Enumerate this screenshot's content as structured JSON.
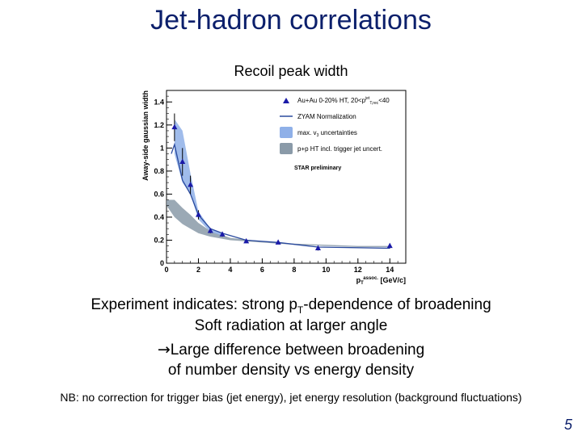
{
  "slide": {
    "title": "Jet-hadron correlations",
    "subtitle": "Recoil peak width",
    "text_lines": [
      {
        "pre": "Experiment indicates: strong p",
        "sub": "T",
        "post": "-dependence of broadening"
      },
      {
        "pre": "Soft radiation at larger angle"
      },
      {
        "arrow": "→",
        "pre": "Large difference between broadening"
      },
      {
        "pre": "of number density vs energy density"
      }
    ],
    "nb": "NB: no correction for trigger bias (jet energy), jet energy resolution (background fluctuations)",
    "page_number": "5"
  },
  "chart_data": {
    "type": "scatter",
    "ylabel": "Away-side gaussian width",
    "xlabel": "p",
    "xlabel_sub": "T",
    "xlabel_sup": "assoc.",
    "xlabel_unit": "[GeV/c]",
    "xlim": [
      0,
      15
    ],
    "ylim": [
      0,
      1.5
    ],
    "xticks": [
      0,
      2,
      4,
      6,
      8,
      10,
      12,
      14
    ],
    "yticks": [
      0,
      0.2,
      0.4,
      0.6,
      0.8,
      1.0,
      1.2,
      1.4
    ],
    "legend": {
      "placement": "top-right",
      "entries": [
        {
          "label": "Au+Au 0-20% HT, 20<p",
          "label_sup": "jet",
          "label_sub": "T,rec",
          "label_post": "<40",
          "kind": "marker"
        },
        {
          "label": "ZYAM Normalization",
          "kind": "line"
        },
        {
          "label": "max. v",
          "label_sub": "3",
          "label_post": " uncertainties",
          "kind": "band-blue"
        },
        {
          "label": "p+p HT incl. trigger jet uncert.",
          "kind": "band-gray"
        }
      ],
      "note": "STAR preliminary"
    },
    "colors": {
      "marker": "#1a1aa8",
      "zyam": "#2a4a9e",
      "v3_band": "#8fb0e8",
      "pp_band": "#8a9aa8"
    },
    "series": [
      {
        "name": "Au+Au 0-20% HT, 20<p_T,rec^jet<40",
        "x": [
          0.5,
          1.0,
          1.5,
          2.0,
          2.75,
          3.5,
          5.0,
          7.0,
          9.5,
          14.0
        ],
        "y": [
          1.18,
          0.88,
          0.68,
          0.42,
          0.28,
          0.25,
          0.19,
          0.18,
          0.13,
          0.15
        ],
        "err": [
          0.12,
          0.12,
          0.08,
          0.04,
          0.02,
          0.02,
          0.01,
          0.01,
          0.02,
          0.02
        ]
      }
    ],
    "zyam_line": {
      "x": [
        0.3,
        0.5,
        1.0,
        1.5,
        2.0,
        2.75,
        3.5,
        5.0,
        7.0,
        9.5,
        14.0
      ],
      "y": [
        0.95,
        1.03,
        0.72,
        0.6,
        0.42,
        0.3,
        0.26,
        0.2,
        0.18,
        0.14,
        0.13
      ]
    },
    "v3_band": {
      "x": [
        0.5,
        1.0,
        1.5,
        2.0,
        2.75,
        3.5
      ],
      "upper": [
        1.25,
        1.15,
        0.78,
        0.45,
        0.3,
        0.26
      ],
      "lower": [
        0.95,
        0.7,
        0.6,
        0.38,
        0.27,
        0.24
      ]
    },
    "pp_band": {
      "x": [
        0.0,
        0.5,
        1.0,
        1.5,
        2.0,
        2.75,
        4.0,
        6.0,
        8.0,
        10.0,
        12.0,
        14.0
      ],
      "upper": [
        0.55,
        0.55,
        0.48,
        0.42,
        0.35,
        0.28,
        0.22,
        0.19,
        0.17,
        0.16,
        0.15,
        0.15
      ],
      "lower": [
        0.5,
        0.4,
        0.34,
        0.3,
        0.26,
        0.23,
        0.2,
        0.18,
        0.16,
        0.15,
        0.14,
        0.14
      ]
    }
  }
}
